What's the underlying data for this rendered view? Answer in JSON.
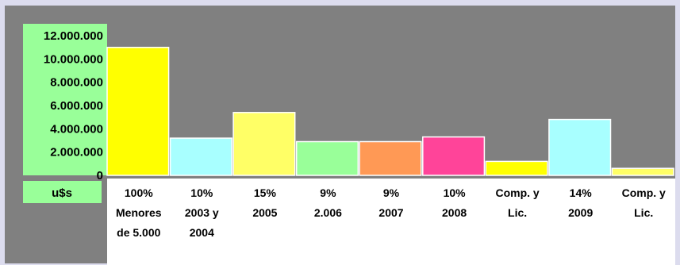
{
  "chart_data": {
    "type": "bar",
    "ylim": [
      0,
      12000000
    ],
    "ytick_labels": [
      "12.000.000",
      "10.000.000",
      "8.000.000",
      "6.000.000",
      "4.000.000",
      "2.000.000",
      "0"
    ],
    "ylabel": "u$s",
    "categories": [
      {
        "lines": [
          "100%",
          "Menores",
          "de 5.000"
        ],
        "value": 11000000,
        "color": "#ffff00"
      },
      {
        "lines": [
          "10%",
          "2003 y",
          "2004"
        ],
        "value": 3200000,
        "color": "#a8ffff"
      },
      {
        "lines": [
          "15%",
          "2005"
        ],
        "value": 5400000,
        "color": "#ffff66"
      },
      {
        "lines": [
          "9%",
          "2.006"
        ],
        "value": 2900000,
        "color": "#99ff99"
      },
      {
        "lines": [
          "9%",
          "2007"
        ],
        "value": 2900000,
        "color": "#ff9955"
      },
      {
        "lines": [
          "10%",
          "2008"
        ],
        "value": 3300000,
        "color": "#ff4499"
      },
      {
        "lines": [
          "Comp. y",
          "Lic."
        ],
        "value": 1200000,
        "color": "#ffff00"
      },
      {
        "lines": [
          "14%",
          "2009"
        ],
        "value": 4800000,
        "color": "#a8ffff"
      },
      {
        "lines": [
          "Comp. y",
          "Lic."
        ],
        "value": 600000,
        "color": "#ffff66"
      }
    ],
    "colors": {
      "axis_panel": "#99ff99",
      "background": "#808080",
      "label_panel": "#ffffff"
    }
  }
}
